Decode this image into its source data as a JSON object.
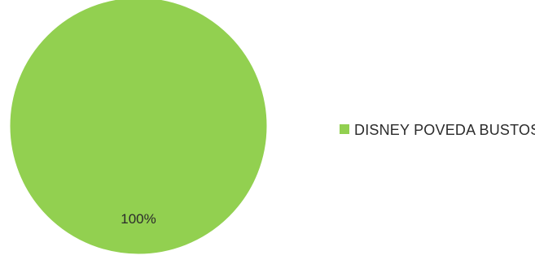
{
  "chart_data": {
    "type": "pie",
    "slices": [
      {
        "label": "DISNEY POVEDA BUSTOS",
        "value": 100,
        "data_label": "100%",
        "color": "#92d050"
      }
    ],
    "legend": {
      "position": "right",
      "entries": [
        "DISNEY POVEDA BUSTOS"
      ]
    }
  }
}
